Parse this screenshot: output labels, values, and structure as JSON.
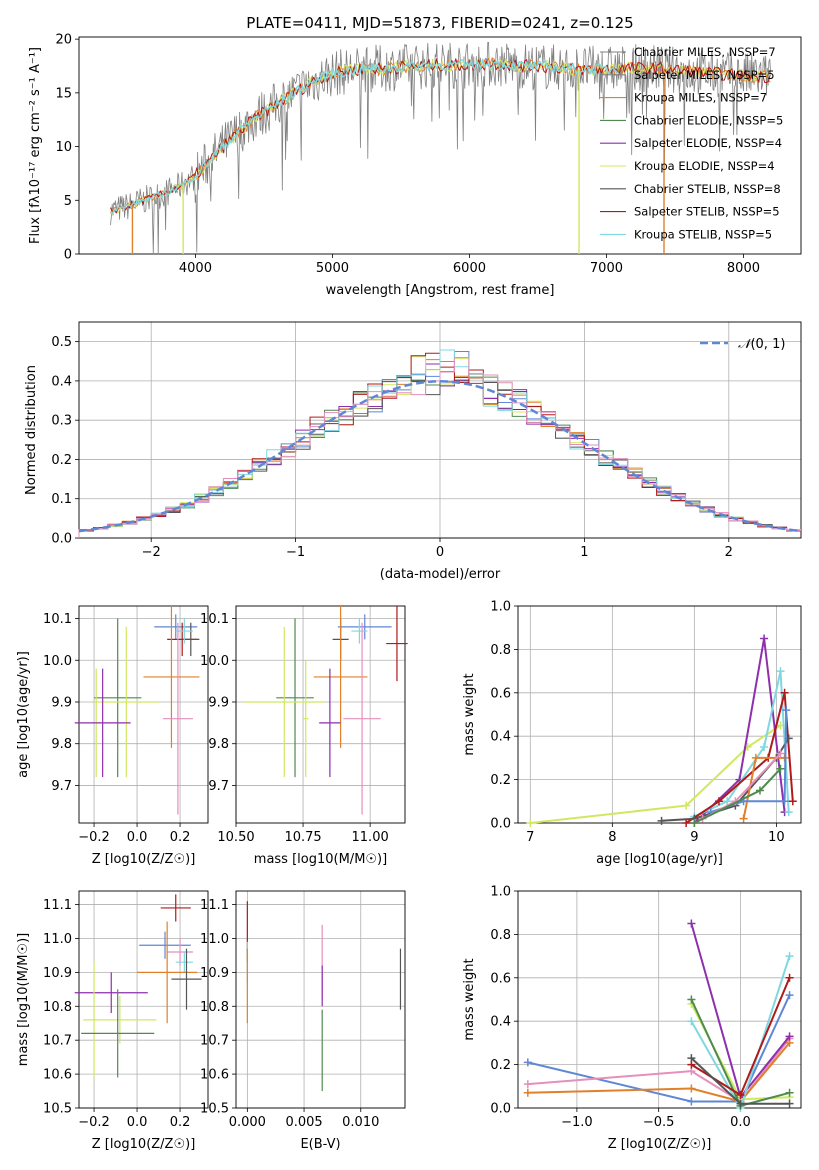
{
  "colors": {
    "blue": "#5f87d6",
    "orange": "#e0802a",
    "green": "#4f8a4f",
    "purple": "#8e2fae",
    "yellow": "#d0e861",
    "gray": "#555555",
    "red": "#b01a1a",
    "cyan": "#7fd8df",
    "pink": "#e58fbd",
    "dark": "#333333"
  },
  "chart_data": [
    {
      "id": "spectrum",
      "type": "line",
      "title": "PLATE=0411, MJD=51873, FIBERID=0241, z=0.125",
      "xlabel": "wavelength [Angstrom, rest frame]",
      "ylabel": "Flux [fλ10⁻¹⁷ erg cm⁻² s⁻¹ A⁻¹]",
      "xlim": [
        3150,
        8420
      ],
      "ylim": [
        0,
        20.2
      ],
      "xticks": [
        4000,
        5000,
        6000,
        7000,
        8000
      ],
      "yticks": [
        0,
        5,
        10,
        15,
        20
      ],
      "legend_position": "right",
      "legend": [
        {
          "label": "Chabrier MILES, N_SSP=7",
          "color": "#808080"
        },
        {
          "label": "Salpeter MILES, N_SSP=5",
          "color": "#808080"
        },
        {
          "label": "Kroupa MILES, N_SSP=7",
          "color": "#e0802a"
        },
        {
          "label": "Chabrier ELODIE, N_SSP=5",
          "color": "#4f8a4f"
        },
        {
          "label": "Salpeter ELODIE, N_SSP=4",
          "color": "#8e2fae"
        },
        {
          "label": "Kroupa ELODIE, N_SSP=4",
          "color": "#d0e861"
        },
        {
          "label": "Chabrier STELIB, N_SSP=8",
          "color": "#555555"
        },
        {
          "label": "Salpeter STELIB, N_SSP=5",
          "color": "#b01a1a"
        },
        {
          "label": "Kroupa STELIB, N_SSP=5",
          "color": "#7fd8df"
        }
      ],
      "continuum": [
        [
          3380,
          4.0
        ],
        [
          3500,
          4.4
        ],
        [
          3600,
          4.9
        ],
        [
          3700,
          5.3
        ],
        [
          3800,
          5.8
        ],
        [
          3900,
          6.4
        ],
        [
          4000,
          7.3
        ],
        [
          4100,
          8.6
        ],
        [
          4200,
          10.0
        ],
        [
          4300,
          11.2
        ],
        [
          4400,
          12.3
        ],
        [
          4500,
          13.2
        ],
        [
          4600,
          14.0
        ],
        [
          4700,
          14.8
        ],
        [
          4800,
          15.6
        ],
        [
          4900,
          16.3
        ],
        [
          5000,
          16.8
        ],
        [
          5200,
          17.2
        ],
        [
          5400,
          17.3
        ],
        [
          5600,
          17.5
        ],
        [
          5800,
          17.6
        ],
        [
          6000,
          17.6
        ],
        [
          6200,
          17.7
        ],
        [
          6400,
          17.5
        ],
        [
          6600,
          17.4
        ],
        [
          6800,
          17.2
        ],
        [
          7000,
          17.2
        ],
        [
          7200,
          17.3
        ],
        [
          7400,
          17.3
        ],
        [
          7600,
          17.0
        ],
        [
          7800,
          16.8
        ],
        [
          8000,
          16.6
        ],
        [
          8200,
          16.5
        ]
      ],
      "spikes_down": [
        [
          3540,
          0
        ],
        [
          3910,
          0
        ],
        [
          6800,
          0
        ],
        [
          7420,
          0
        ]
      ]
    },
    {
      "id": "residuals",
      "type": "histogram",
      "xlabel": "(data-model)/error",
      "ylabel": "Normed distribution",
      "xlim": [
        -2.5,
        2.5
      ],
      "ylim": [
        0,
        0.55
      ],
      "xticks": [
        -2,
        -1,
        0,
        1,
        2
      ],
      "yticks": [
        0.0,
        0.1,
        0.2,
        0.3,
        0.4,
        0.5
      ],
      "legend": [
        {
          "label": "N(0,1)",
          "style": "dashed",
          "color": "#5f87d6"
        }
      ],
      "bin_width": 0.1
    },
    {
      "id": "age_vs_Z",
      "type": "errorbar",
      "xlabel": "Z [log10(Z/Z☉)]",
      "ylabel": "age  [log10(age/yr)]",
      "xlim": [
        -0.27,
        0.33
      ],
      "ylim": [
        9.61,
        10.13
      ],
      "xticks": [
        -0.2,
        0.0,
        0.2
      ],
      "yticks": [
        9.7,
        9.8,
        9.9,
        10.0,
        10.1
      ],
      "points": [
        {
          "x": 0.18,
          "xerr": 0.1,
          "y": 10.08,
          "yerr": 0.03,
          "color": "#5f87d6"
        },
        {
          "x": 0.21,
          "xerr": 0.07,
          "y": 10.05,
          "yerr": 0.04,
          "color": "#b01a1a"
        },
        {
          "x": 0.25,
          "xerr": 0.04,
          "y": 10.05,
          "yerr": 0.04,
          "color": "#555555"
        },
        {
          "x": 0.22,
          "xerr": 0.04,
          "y": 10.07,
          "yerr": 0.03,
          "color": "#7fd8df"
        },
        {
          "x": 0.16,
          "xerr": 0.13,
          "y": 9.96,
          "yerr": 0.17,
          "color": "#e0802a"
        },
        {
          "x": -0.09,
          "xerr": 0.11,
          "y": 9.91,
          "yerr": 0.19,
          "color": "#4f8a4f"
        },
        {
          "x": -0.05,
          "xerr": 0.15,
          "y": 9.9,
          "yerr": 0.18,
          "color": "#d0e861"
        },
        {
          "x": -0.19,
          "xerr": 0.02,
          "y": 9.85,
          "yerr": 0.13,
          "color": "#d0e861"
        },
        {
          "x": -0.16,
          "xerr": 0.13,
          "y": 9.85,
          "yerr": 0.13,
          "color": "#8e2fae"
        },
        {
          "x": 0.19,
          "xerr": 0.07,
          "y": 9.86,
          "yerr": 0.23,
          "color": "#e58fbd"
        }
      ]
    },
    {
      "id": "age_vs_mass",
      "type": "errorbar",
      "xlabel": "mass [log10(M/M☉)]",
      "ylabel": "",
      "xlim": [
        10.5,
        11.13
      ],
      "ylim": [
        9.61,
        10.13
      ],
      "xticks": [
        10.5,
        10.75,
        11.0
      ],
      "yticks": [
        9.7,
        9.8,
        9.9,
        10.0,
        10.1
      ],
      "points": [
        {
          "x": 10.98,
          "xerr": 0.1,
          "y": 10.08,
          "yerr": 0.03,
          "color": "#5f87d6"
        },
        {
          "x": 11.1,
          "xerr": 0.04,
          "y": 10.04,
          "yerr": 0.09,
          "color": "#b01a1a"
        },
        {
          "x": 10.89,
          "xerr": 0.03,
          "y": 10.05,
          "yerr": 0.05,
          "color": "#555555"
        },
        {
          "x": 10.96,
          "xerr": 0.03,
          "y": 10.07,
          "yerr": 0.03,
          "color": "#7fd8df"
        },
        {
          "x": 10.89,
          "xerr": 0.1,
          "y": 9.96,
          "yerr": 0.17,
          "color": "#e0802a"
        },
        {
          "x": 10.72,
          "xerr": 0.07,
          "y": 9.91,
          "yerr": 0.19,
          "color": "#4f8a4f"
        },
        {
          "x": 10.68,
          "xerr": 0.15,
          "y": 9.9,
          "yerr": 0.18,
          "color": "#d0e861"
        },
        {
          "x": 10.76,
          "xerr": 0.01,
          "y": 9.86,
          "yerr": 0.14,
          "color": "#d0e861"
        },
        {
          "x": 10.85,
          "xerr": 0.04,
          "y": 9.85,
          "yerr": 0.13,
          "color": "#8e2fae"
        },
        {
          "x": 10.97,
          "xerr": 0.07,
          "y": 9.86,
          "yerr": 0.23,
          "color": "#e58fbd"
        }
      ]
    },
    {
      "id": "weight_vs_age",
      "type": "line",
      "xlabel": "age  [log10(age/yr)]",
      "ylabel": "mass weight",
      "xlim": [
        6.85,
        10.3
      ],
      "ylim": [
        0,
        1.0
      ],
      "xticks": [
        7,
        8,
        9,
        10
      ],
      "yticks": [
        0.0,
        0.2,
        0.4,
        0.6,
        0.8,
        1.0
      ],
      "series": [
        {
          "color": "#d0e861",
          "points": [
            [
              7.0,
              0.0
            ],
            [
              8.9,
              0.08
            ],
            [
              9.65,
              0.35
            ],
            [
              10.05,
              0.45
            ]
          ]
        },
        {
          "color": "#8e2fae",
          "points": [
            [
              9.0,
              0.0
            ],
            [
              9.55,
              0.2
            ],
            [
              9.85,
              0.85
            ],
            [
              10.1,
              0.05
            ]
          ]
        },
        {
          "color": "#7fd8df",
          "points": [
            [
              9.0,
              0.03
            ],
            [
              9.4,
              0.1
            ],
            [
              9.85,
              0.35
            ],
            [
              10.05,
              0.7
            ],
            [
              10.15,
              0.05
            ]
          ]
        },
        {
          "color": "#b01a1a",
          "points": [
            [
              8.9,
              0.0
            ],
            [
              9.3,
              0.1
            ],
            [
              9.9,
              0.3
            ],
            [
              10.1,
              0.6
            ],
            [
              10.2,
              0.1
            ]
          ]
        },
        {
          "color": "#555555",
          "points": [
            [
              8.6,
              0.01
            ],
            [
              9.0,
              0.02
            ],
            [
              9.5,
              0.08
            ],
            [
              10.0,
              0.3
            ],
            [
              10.15,
              0.39
            ]
          ]
        },
        {
          "color": "#e0802a",
          "points": [
            [
              9.6,
              0.02
            ],
            [
              9.75,
              0.3
            ],
            [
              10.1,
              0.3
            ]
          ]
        },
        {
          "color": "#5f87d6",
          "points": [
            [
              9.2,
              0.05
            ],
            [
              9.6,
              0.1
            ],
            [
              10.1,
              0.1
            ],
            [
              10.12,
              0.52
            ]
          ]
        },
        {
          "color": "#e58fbd",
          "points": [
            [
              9.1,
              0.02
            ],
            [
              9.5,
              0.1
            ],
            [
              10.05,
              0.32
            ]
          ]
        },
        {
          "color": "#4f8a4f",
          "points": [
            [
              9.0,
              0.0
            ],
            [
              9.8,
              0.15
            ],
            [
              10.05,
              0.25
            ]
          ]
        }
      ]
    },
    {
      "id": "mass_vs_Z",
      "type": "errorbar",
      "xlabel": "Z [log10(Z/Z☉)]",
      "ylabel": "mass [log10(M/M☉)]",
      "xlim": [
        -0.27,
        0.33
      ],
      "ylim": [
        10.5,
        11.14
      ],
      "xticks": [
        -0.2,
        0.0,
        0.2
      ],
      "yticks": [
        10.5,
        10.6,
        10.7,
        10.8,
        10.9,
        11.0,
        11.1
      ],
      "points": [
        {
          "x": 0.18,
          "xerr": 0.07,
          "y": 11.09,
          "yerr": 0.04,
          "color": "#b01a1a"
        },
        {
          "x": 0.13,
          "xerr": 0.12,
          "y": 10.98,
          "yerr": 0.04,
          "color": "#5f87d6"
        },
        {
          "x": 0.2,
          "xerr": 0.06,
          "y": 10.96,
          "yerr": 0.04,
          "color": "#e58fbd"
        },
        {
          "x": 0.22,
          "xerr": 0.04,
          "y": 10.93,
          "yerr": 0.03,
          "color": "#7fd8df"
        },
        {
          "x": 0.14,
          "xerr": 0.14,
          "y": 10.9,
          "yerr": 0.15,
          "color": "#e0802a"
        },
        {
          "x": 0.23,
          "xerr": 0.07,
          "y": 10.88,
          "yerr": 0.09,
          "color": "#555555"
        },
        {
          "x": -0.12,
          "xerr": 0.17,
          "y": 10.84,
          "yerr": 0.06,
          "color": "#8e2fae"
        },
        {
          "x": -0.08,
          "xerr": 0.17,
          "y": 10.76,
          "yerr": 0.07,
          "color": "#d0e861"
        },
        {
          "x": -0.2,
          "xerr": 0.01,
          "y": 10.76,
          "yerr": 0.17,
          "color": "#d0e861"
        },
        {
          "x": -0.09,
          "xerr": 0.17,
          "y": 10.72,
          "yerr": 0.13,
          "color": "#4f8a4f"
        }
      ]
    },
    {
      "id": "mass_vs_ebv",
      "type": "errorbar",
      "xlabel": "E(B-V)",
      "ylabel": "",
      "xlim": [
        -0.001,
        0.0139
      ],
      "ylim": [
        10.5,
        11.14
      ],
      "xticks": [
        0.0,
        0.005,
        0.01
      ],
      "xtick_labels": [
        "0.000",
        "0.005",
        "0.010"
      ],
      "yticks": [
        10.5,
        10.6,
        10.7,
        10.8,
        10.9,
        11.0,
        11.1
      ],
      "points": [
        {
          "x": 0.0,
          "xerr": 0,
          "y": 11.02,
          "yerr": 0.09,
          "color": "#b01a1a"
        },
        {
          "x": 0.0,
          "xerr": 0,
          "y": 10.93,
          "yerr": 0.06,
          "color": "#7fd8df"
        },
        {
          "x": 0.0,
          "xerr": 0,
          "y": 10.86,
          "yerr": 0.11,
          "color": "#e0802a"
        },
        {
          "x": 0.0066,
          "xerr": 0,
          "y": 10.93,
          "yerr": 0.11,
          "color": "#e58fbd"
        },
        {
          "x": 0.0066,
          "xerr": 0,
          "y": 10.86,
          "yerr": 0.06,
          "color": "#8e2fae"
        },
        {
          "x": 0.0066,
          "xerr": 0,
          "y": 10.67,
          "yerr": 0.12,
          "color": "#4f8a4f"
        },
        {
          "x": 0.0135,
          "xerr": 0,
          "y": 10.88,
          "yerr": 0.09,
          "color": "#555555"
        }
      ]
    },
    {
      "id": "weight_vs_Z",
      "type": "line",
      "xlabel": "Z [log10(Z/Z☉)]",
      "ylabel": "mass weight",
      "xlim": [
        -1.36,
        0.37
      ],
      "ylim": [
        0,
        1.0
      ],
      "xticks": [
        -1.0,
        -0.5,
        0.0
      ],
      "yticks": [
        0.0,
        0.2,
        0.4,
        0.6,
        0.8,
        1.0
      ],
      "series": [
        {
          "color": "#5f87d6",
          "points": [
            [
              -1.3,
              0.21
            ],
            [
              -0.3,
              0.03
            ],
            [
              0.0,
              0.03
            ],
            [
              0.3,
              0.52
            ]
          ]
        },
        {
          "color": "#e58fbd",
          "points": [
            [
              -1.3,
              0.11
            ],
            [
              -0.3,
              0.17
            ],
            [
              0.0,
              0.03
            ],
            [
              0.3,
              0.32
            ]
          ]
        },
        {
          "color": "#e0802a",
          "points": [
            [
              -1.3,
              0.07
            ],
            [
              -0.3,
              0.09
            ],
            [
              0.0,
              0.03
            ],
            [
              0.3,
              0.3
            ]
          ]
        },
        {
          "color": "#8e2fae",
          "points": [
            [
              -0.3,
              0.85
            ],
            [
              0.0,
              0.05
            ],
            [
              0.3,
              0.33
            ]
          ]
        },
        {
          "color": "#d0e861",
          "points": [
            [
              -0.3,
              0.48
            ],
            [
              0.0,
              0.04
            ],
            [
              0.3,
              0.05
            ]
          ]
        },
        {
          "color": "#7fd8df",
          "points": [
            [
              -0.3,
              0.4
            ],
            [
              0.0,
              0.0
            ],
            [
              0.3,
              0.7
            ]
          ]
        },
        {
          "color": "#4f8a4f",
          "points": [
            [
              -0.3,
              0.5
            ],
            [
              0.0,
              0.01
            ],
            [
              0.3,
              0.07
            ]
          ]
        },
        {
          "color": "#b01a1a",
          "points": [
            [
              -0.3,
              0.2
            ],
            [
              0.0,
              0.06
            ],
            [
              0.3,
              0.6
            ]
          ]
        },
        {
          "color": "#555555",
          "points": [
            [
              -0.3,
              0.23
            ],
            [
              0.0,
              0.02
            ],
            [
              0.3,
              0.02
            ]
          ]
        }
      ]
    }
  ]
}
